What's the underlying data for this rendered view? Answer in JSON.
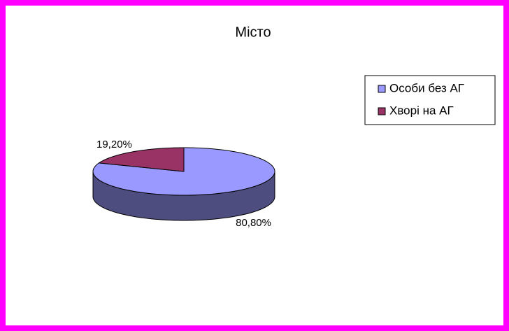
{
  "chart_data": {
    "type": "pie",
    "title": "Місто",
    "categories": [
      "Особи без АГ",
      "Хворі на АГ"
    ],
    "values": [
      80.8,
      19.2
    ],
    "value_labels": [
      "80,80%",
      "19,20%"
    ],
    "colors": [
      "#9999ff",
      "#993366"
    ],
    "legend": "right"
  }
}
